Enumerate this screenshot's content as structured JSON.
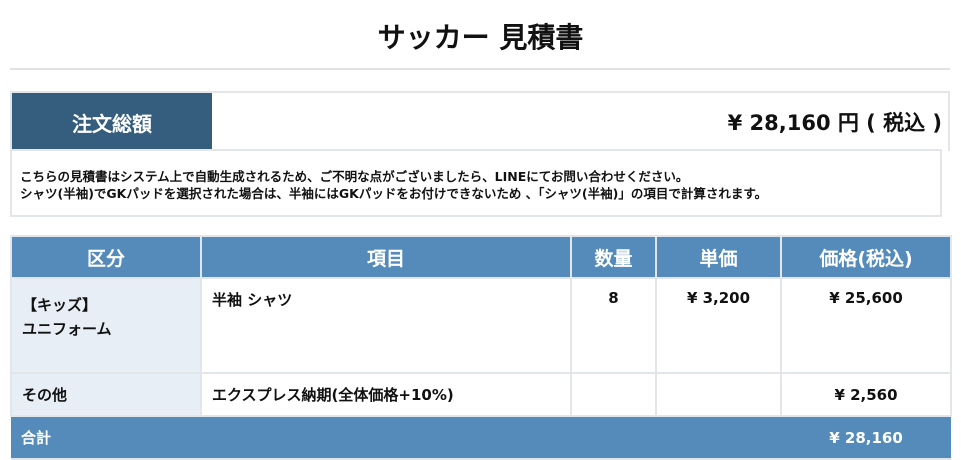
{
  "title": "サッカー 見積書",
  "summary": {
    "label": "注文総額",
    "value": "¥ 28,160 円 ( 税込 )"
  },
  "notes": [
    "こちらの見積書はシステム上で自動生成されるため、ご不明な点がございましたら、LINEにてお問い合わせください。",
    "シャツ(半袖)でGKパッドを選択された場合は、半袖にはGKパッドをお付けできないため 、「シャツ(半袖)」の項目で計算されます。"
  ],
  "table": {
    "headers": [
      "区分",
      "項目",
      "数量",
      "単価",
      "価格(税込)"
    ],
    "rows": [
      {
        "category_line1": "【キッズ】",
        "category_line2": "ユニフォーム",
        "item": "半袖 シャツ",
        "qty": "8",
        "unit": "¥ 3,200",
        "price": "¥ 25,600"
      },
      {
        "category_line1": "その他",
        "item": "エクスプレス納期(全体価格+10%)",
        "qty": "",
        "unit": "",
        "price": "¥ 2,560"
      }
    ],
    "total": {
      "label": "合計",
      "value": "¥ 28,160"
    }
  },
  "colors": {
    "header": "#548bba",
    "summary_label": "#345d7e",
    "category_bg": "#e8eef5"
  }
}
